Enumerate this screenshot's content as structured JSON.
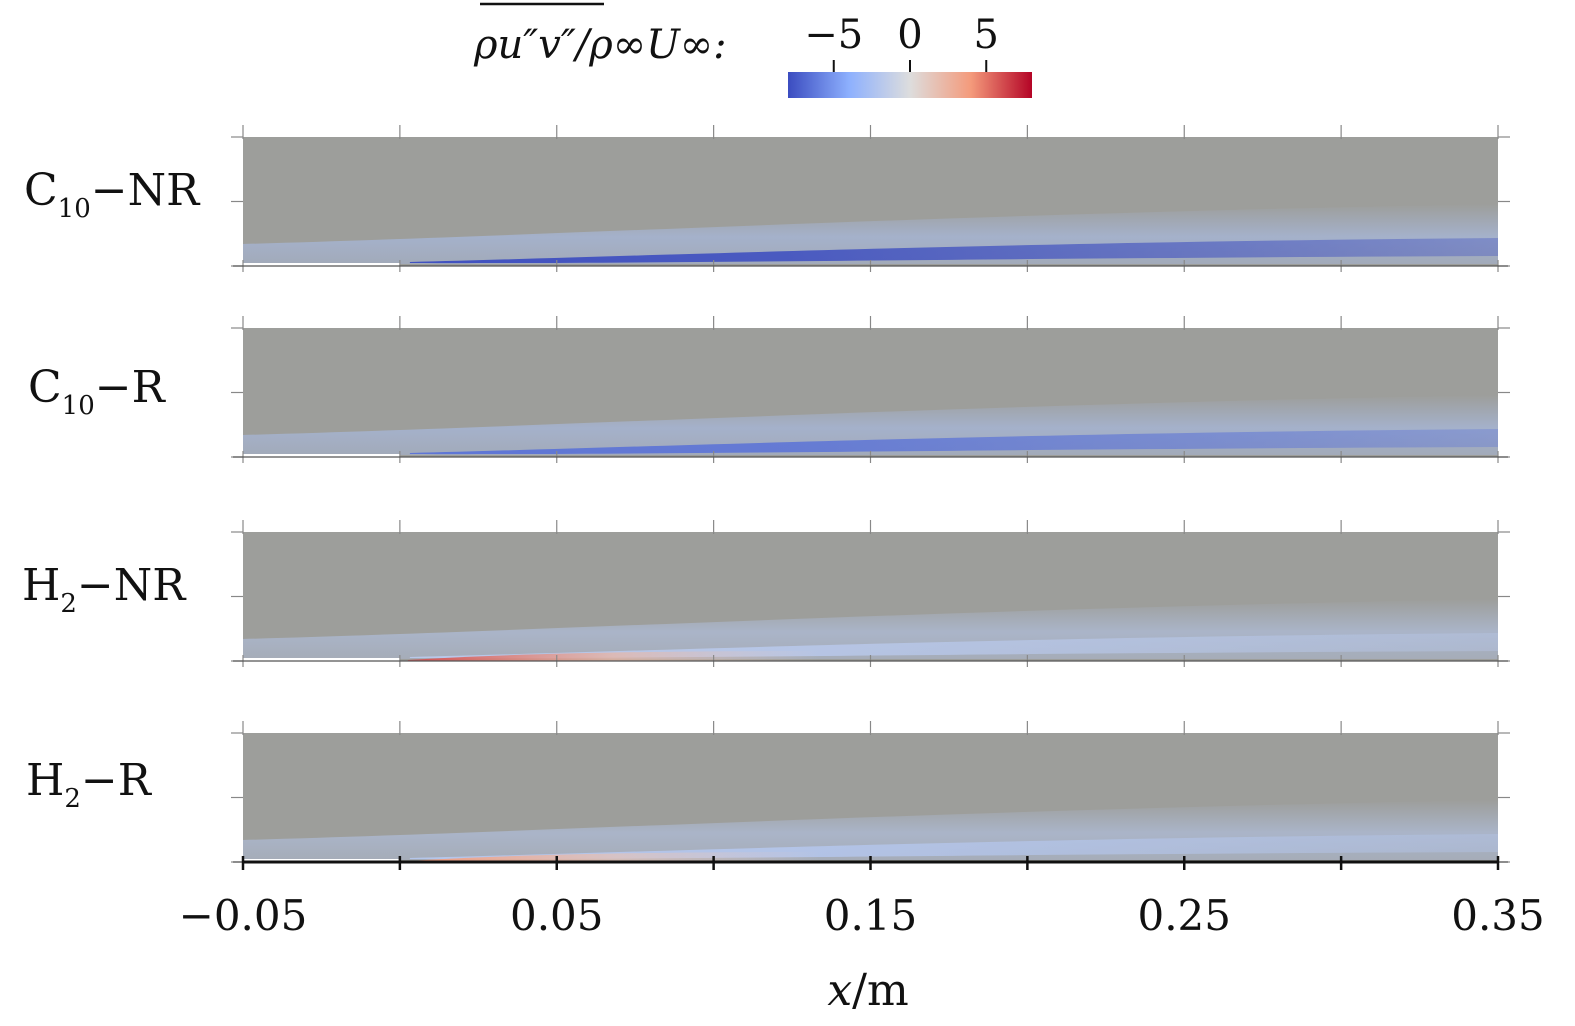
{
  "chart_data": {
    "type": "heatmap",
    "colorbar": {
      "title": "ρu″v″/ρ∞U∞:",
      "overline_part": "ρu″v″",
      "ticks": [
        -5,
        0,
        5
      ],
      "tick_labels": [
        "−5",
        "0",
        "5"
      ],
      "range": [
        -8,
        8
      ],
      "colormap": [
        "#3b4cc0",
        "#8db0fe",
        "#dddddd",
        "#f49a7b",
        "#b40426"
      ]
    },
    "x_axis": {
      "label": "x/m",
      "range": [
        -0.05,
        0.35
      ],
      "major_ticks": [
        -0.05,
        0,
        0.05,
        0.1,
        0.15,
        0.2,
        0.25,
        0.3,
        0.35
      ],
      "tick_labels": [
        {
          "value": -0.05,
          "text": "−0.05"
        },
        {
          "value": 0.05,
          "text": "0.05"
        },
        {
          "value": 0.15,
          "text": "0.15"
        },
        {
          "value": 0.25,
          "text": "0.25"
        },
        {
          "value": 0.35,
          "text": "0.35"
        }
      ]
    },
    "panels": [
      {
        "main": "C",
        "sub": "10",
        "suffix": "−NR",
        "max_value": -8.0,
        "plate_band_value": -2.5,
        "near_wall_value": 0
      },
      {
        "main": "C",
        "sub": "10",
        "suffix": "−R",
        "max_value": -6.5,
        "plate_band_value": -2.5,
        "near_wall_value": 0
      },
      {
        "main": "H",
        "sub": "2",
        "suffix": "−NR",
        "max_value": -1.8,
        "plate_band_value": -2.0,
        "near_wall_value": 6.0
      },
      {
        "main": "H",
        "sub": "2",
        "suffix": "−R",
        "max_value": -2.0,
        "plate_band_value": -2.0,
        "near_wall_value": 4.0
      }
    ],
    "background_color": "#9d9e9b"
  }
}
